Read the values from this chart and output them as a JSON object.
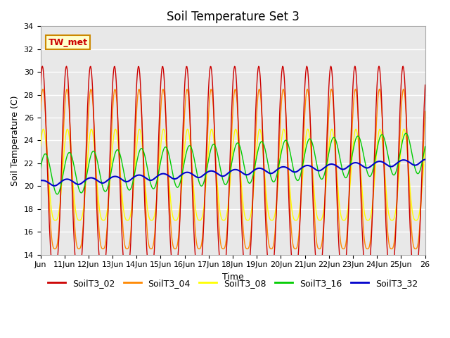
{
  "title": "Soil Temperature Set 3",
  "xlabel": "Time",
  "ylabel": "Soil Temperature (C)",
  "ylim": [
    14,
    34
  ],
  "yticks": [
    14,
    16,
    18,
    20,
    22,
    24,
    26,
    28,
    30,
    32,
    34
  ],
  "series_colors": {
    "SoilT3_02": "#cc0000",
    "SoilT3_04": "#ff8800",
    "SoilT3_08": "#ffff00",
    "SoilT3_16": "#00cc00",
    "SoilT3_32": "#0000cc"
  },
  "annotation_text": "TW_met",
  "plot_bg_color": "#e8e8e8",
  "grid_color": "#d0d0d0",
  "title_fontsize": 12,
  "axis_label_fontsize": 9,
  "tick_fontsize": 8,
  "legend_fontsize": 9,
  "n_days": 16,
  "points_per_day": 48,
  "base_02": 21.5,
  "amp_02": 9.0,
  "phase_02": 0.58,
  "base_04": 21.5,
  "amp_04": 7.0,
  "phase_04": 0.6,
  "base_08": 21.0,
  "amp_08": 4.0,
  "phase_08": 0.62,
  "base_16": 21.0,
  "amp_16": 1.8,
  "phase_16": 0.7,
  "base_32": 20.2,
  "amp_32": 0.3,
  "phase_32": 0.58,
  "trend_02": 0.0,
  "trend_04": 0.0,
  "trend_08": 0.0,
  "trend_16": 0.12,
  "trend_32": 0.12
}
